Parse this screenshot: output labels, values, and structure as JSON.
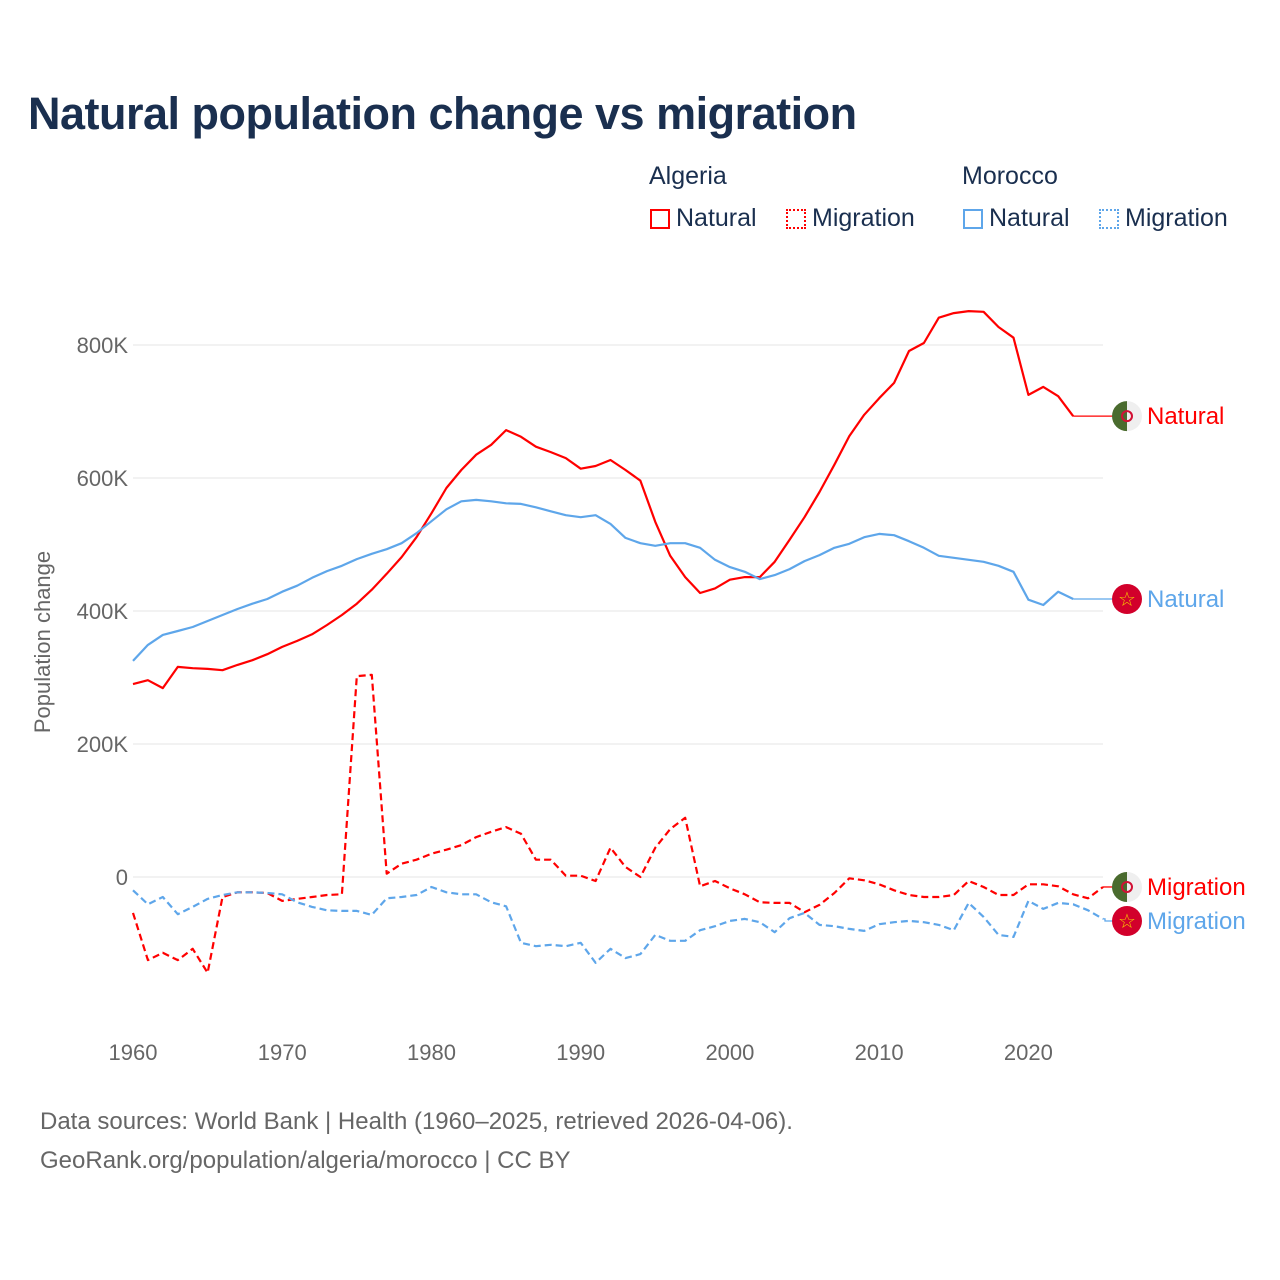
{
  "title": "Natural population change vs migration",
  "legend": {
    "groups": [
      {
        "name": "Algeria",
        "items": [
          "Natural",
          "Migration"
        ]
      },
      {
        "name": "Morocco",
        "items": [
          "Natural",
          "Migration"
        ]
      }
    ]
  },
  "colors": {
    "algeria": "#ff0000",
    "morocco": "#5ea6ea",
    "title": "#1a2f4f",
    "grid": "#e6e6e6"
  },
  "footer": {
    "line1": "Data sources: World Bank | Health (1960–2025, retrieved 2026-04-06).",
    "line2": "GeoRank.org/population/algeria/morocco | CC BY"
  },
  "chart_data": {
    "type": "line",
    "title": "Natural population change vs migration",
    "xlabel": "",
    "ylabel": "Population change",
    "xlim": [
      1960,
      2025
    ],
    "ylim": [
      -160000,
      880000
    ],
    "x_ticks": [
      1960,
      1970,
      1980,
      1990,
      2000,
      2010,
      2020
    ],
    "x_tick_labels": [
      "1960",
      "1970",
      "1980",
      "1990",
      "2000",
      "2010",
      "2020"
    ],
    "y_ticks": [
      0,
      200000,
      400000,
      600000,
      800000
    ],
    "y_tick_labels": [
      "0",
      "200K",
      "400K",
      "600K",
      "800K"
    ],
    "grid": true,
    "legend_position": "top-right",
    "series": [
      {
        "name": "Algeria Natural",
        "country": "Algeria",
        "kind": "Natural",
        "label": "Natural",
        "color": "#ff0000",
        "dash": "solid",
        "start": 1960,
        "values": [
          290000,
          296000,
          284000,
          316000,
          314000,
          313000,
          311000,
          319000,
          326000,
          335000,
          346000,
          355000,
          365000,
          379000,
          394000,
          411000,
          432000,
          456000,
          481000,
          511000,
          547000,
          585000,
          612000,
          635000,
          650000,
          672000,
          662000,
          647000,
          639000,
          630000,
          614000,
          618000,
          627000,
          612000,
          596000,
          534000,
          483000,
          451000,
          427000,
          434000,
          447000,
          451000,
          451000,
          474000,
          507000,
          541000,
          579000,
          620000,
          663000,
          695000,
          720000,
          743000,
          791000,
          803000,
          841000,
          848000,
          851000,
          850000,
          827000,
          811000,
          725000,
          737000,
          723000,
          693000
        ]
      },
      {
        "name": "Algeria Migration",
        "country": "Algeria",
        "kind": "Migration",
        "label": "Migration",
        "color": "#ff0000",
        "dash": "dashed",
        "start": 1960,
        "values": [
          -54000,
          -125000,
          -114000,
          -125000,
          -108000,
          -144000,
          -30000,
          -23000,
          -23000,
          -24000,
          -36000,
          -33000,
          -30000,
          -27000,
          -26000,
          302000,
          304000,
          5000,
          20000,
          26000,
          35000,
          41000,
          48000,
          60000,
          68000,
          75000,
          65000,
          26000,
          26000,
          2000,
          2000,
          -6000,
          44000,
          15000,
          0,
          44000,
          72000,
          89000,
          -14000,
          -6000,
          -17000,
          -26000,
          -38000,
          -39000,
          -39000,
          -53000,
          -42000,
          -24000,
          -2000,
          -5000,
          -11000,
          -20000,
          -27000,
          -30000,
          -30000,
          -27000,
          -6000,
          -15000,
          -27000,
          -27000,
          -11000,
          -11000,
          -14000,
          -26000,
          -32000,
          -15000
        ]
      },
      {
        "name": "Morocco Natural",
        "country": "Morocco",
        "kind": "Natural",
        "label": "Natural",
        "color": "#5ea6ea",
        "dash": "solid",
        "start": 1960,
        "values": [
          325000,
          349000,
          364000,
          370000,
          376000,
          385000,
          394000,
          403000,
          411000,
          418000,
          429000,
          438000,
          450000,
          460000,
          468000,
          478000,
          486000,
          493000,
          502000,
          517000,
          535000,
          553000,
          565000,
          567000,
          565000,
          562000,
          561000,
          556000,
          550000,
          544000,
          541000,
          544000,
          531000,
          510000,
          502000,
          498000,
          502000,
          502000,
          495000,
          477000,
          466000,
          459000,
          448000,
          454000,
          463000,
          475000,
          484000,
          495000,
          501000,
          511000,
          516000,
          514000,
          505000,
          495000,
          483000,
          480000,
          477000,
          474000,
          468000,
          459000,
          417000,
          409000,
          429000,
          418000
        ]
      },
      {
        "name": "Morocco Migration",
        "country": "Morocco",
        "kind": "Migration",
        "label": "Migration",
        "color": "#5ea6ea",
        "dash": "dashed",
        "start": 1960,
        "values": [
          -20000,
          -41000,
          -30000,
          -56000,
          -45000,
          -33000,
          -27000,
          -23000,
          -23000,
          -24000,
          -26000,
          -38000,
          -45000,
          -50000,
          -51000,
          -51000,
          -57000,
          -32000,
          -30000,
          -27000,
          -15000,
          -23000,
          -26000,
          -26000,
          -38000,
          -44000,
          -99000,
          -104000,
          -102000,
          -104000,
          -99000,
          -129000,
          -108000,
          -122000,
          -116000,
          -87000,
          -96000,
          -96000,
          -80000,
          -74000,
          -66000,
          -63000,
          -68000,
          -83000,
          -62000,
          -54000,
          -72000,
          -74000,
          -78000,
          -81000,
          -71000,
          -68000,
          -66000,
          -68000,
          -72000,
          -80000,
          -39000,
          -60000,
          -87000,
          -90000,
          -36000,
          -48000,
          -39000,
          -41000,
          -50000,
          -63000
        ]
      }
    ]
  }
}
